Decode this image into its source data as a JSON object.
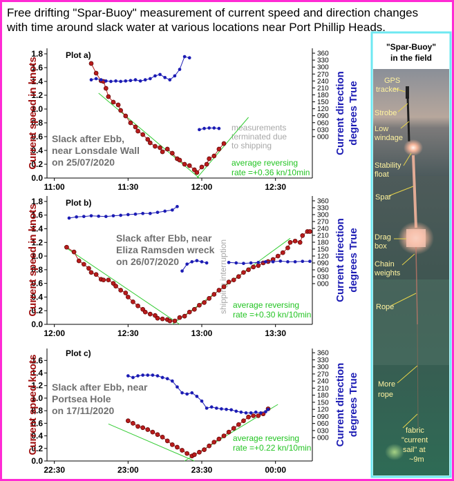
{
  "title": [
    "Free drifting \"Spar-Buoy\" measurement of current speed and direction changes",
    "with time around slack water at various locations near Port Phillip Heads."
  ],
  "chart_data": [
    {
      "type": "line",
      "plot_label": "Plot a)",
      "ylabel": "Current speed in knots",
      "y2label": [
        "Current direction",
        "degrees True"
      ],
      "note": [
        "Slack after Ebb,",
        "near Lonsdale Wall",
        "on 25/07/2020"
      ],
      "remark": [
        "measurements",
        "terminated due",
        "to shipping"
      ],
      "rate_note": [
        "average reversing",
        "rate =+0.36 kn/10min"
      ],
      "xlim": [
        "10:57",
        "12:45"
      ],
      "xticks": [
        "11:00",
        "11:30",
        "12:00",
        "12:30"
      ],
      "ylim": [
        0,
        1.88
      ],
      "yticks": [
        {
          "value": 0,
          "label": "0.0"
        },
        0.2,
        0.4,
        0.6,
        0.8,
        {
          "value": 1,
          "label": "1.0"
        },
        1.2,
        1.4,
        1.6,
        1.8
      ],
      "y2lim": [
        -179,
        381
      ],
      "y2ticks": [
        {
          "value": 0,
          "label": "000"
        },
        {
          "value": 30,
          "label": "030"
        },
        {
          "value": 60,
          "label": "060"
        },
        {
          "value": 90,
          "label": "090"
        },
        120,
        150,
        180,
        210,
        240,
        270,
        300,
        330,
        360
      ],
      "series": [
        {
          "color": "#b81c1c",
          "x": [
            "11:15",
            "11:17",
            "11:19",
            "11:20",
            "11:21",
            "11:22",
            "11:24",
            "11:26",
            "11:27",
            "11:29",
            "11:31",
            "11:33",
            "11:34",
            "11:36",
            "11:38",
            "11:39",
            "11:41",
            "11:43",
            "11:44",
            "11:46",
            "11:48",
            "11:50",
            "11:51",
            "11:53",
            "11:55",
            "11:57",
            "11:58",
            "12:00",
            "12:02",
            "12:03",
            "12:05",
            "12:07",
            "12:09"
          ],
          "values": [
            1.66,
            1.52,
            1.41,
            1.4,
            1.3,
            1.18,
            1.1,
            1.06,
            0.98,
            0.9,
            0.8,
            0.74,
            0.68,
            0.63,
            0.56,
            0.51,
            0.46,
            0.44,
            0.38,
            0.42,
            0.36,
            0.28,
            0.26,
            0.2,
            0.18,
            0.12,
            0.08,
            0.16,
            0.2,
            0.28,
            0.32,
            0.42,
            0.5
          ]
        },
        {
          "color": "#1c1cb4",
          "axis": "y2",
          "x": [
            "11:15",
            "11:17",
            "11:19",
            "11:21",
            "11:23",
            "11:25",
            "11:27",
            "11:29",
            "11:31",
            "11:33",
            "11:35",
            "11:37",
            "11:39",
            "11:41",
            "11:43",
            "11:45",
            "11:47",
            "11:49",
            "11:51",
            "11:53",
            "11:55",
            "11:57",
            "11:59",
            "12:01",
            "12:03",
            "12:05",
            "12:07"
          ],
          "values": [
            245,
            250,
            245,
            240,
            238,
            240,
            238,
            240,
            242,
            245,
            240,
            245,
            250,
            262,
            268,
            255,
            245,
            262,
            290,
            345,
            340,
            null,
            30,
            35,
            37,
            37,
            35
          ]
        }
      ],
      "trend_color": "#33cc33",
      "trend_lines": [
        {
          "x": [
            "11:18",
            "11:59"
          ],
          "values": [
            1.23,
            0
          ]
        },
        {
          "x": [
            "11:58",
            "12:19"
          ],
          "values": [
            0,
            0.88
          ]
        }
      ]
    },
    {
      "type": "line",
      "plot_label": "Plot b)",
      "ylabel": "Current speed in knots",
      "y2label": [
        "Current direction",
        "degrees True"
      ],
      "note": [
        "Slack after Ebb, near",
        "Eliza  Ramsden wreck",
        "on 26/07/2020"
      ],
      "rotated_note": "shipping interruption",
      "rate_note": [
        "average reversing",
        "rate =+0.30 kn/10min"
      ],
      "xlim": [
        "11:57",
        "13:45"
      ],
      "xticks": [
        "12:00",
        "12:30",
        "13:00",
        "13:30"
      ],
      "ylim": [
        0,
        1.88
      ],
      "yticks": [
        {
          "value": 0,
          "label": "0.0"
        },
        0.2,
        0.4,
        0.6,
        0.8,
        {
          "value": 1,
          "label": "1.0"
        },
        1.2,
        1.4,
        1.6,
        1.8
      ],
      "y2lim": [
        -177,
        381
      ],
      "y2ticks": [
        {
          "value": 0,
          "label": "000"
        },
        {
          "value": 30,
          "label": "030"
        },
        {
          "value": 60,
          "label": "060"
        },
        {
          "value": 90,
          "label": "090"
        },
        120,
        150,
        180,
        210,
        240,
        270,
        300,
        330,
        360
      ],
      "series": [
        {
          "color": "#b81c1c",
          "x": [
            "12:05",
            "12:08",
            "12:10",
            "12:12",
            "12:14",
            "12:15",
            "12:17",
            "12:19",
            "12:20",
            "12:22",
            "12:24",
            "12:25",
            "12:27",
            "12:29",
            "12:30",
            "12:32",
            "12:34",
            "12:36",
            "12:37",
            "12:39",
            "12:41",
            "12:42",
            "12:44",
            "12:46",
            "12:47",
            "12:49",
            "12:51",
            "12:53",
            "12:55",
            "12:57",
            "12:59",
            "13:01",
            "13:03",
            "13:05",
            "13:07",
            "13:09",
            "13:11",
            "13:13",
            "13:15",
            "13:17",
            "13:19",
            "13:21",
            "13:23",
            "13:25",
            "13:27",
            "13:29",
            "13:31",
            "13:33",
            "13:35",
            "13:36",
            "13:38",
            "13:40",
            "13:41",
            "13:43",
            "13:44"
          ],
          "values": [
            1.13,
            1.06,
            0.93,
            0.88,
            0.82,
            0.76,
            0.73,
            0.66,
            0.65,
            0.65,
            0.6,
            0.56,
            0.5,
            0.46,
            0.4,
            0.33,
            0.27,
            0.22,
            0.18,
            0.15,
            0.13,
            0.09,
            0.08,
            0.07,
            0.05,
            0.05,
            0.1,
            0.12,
            0.18,
            0.22,
            0.28,
            0.32,
            0.38,
            0.44,
            0.5,
            0.55,
            0.62,
            0.65,
            0.7,
            0.76,
            0.8,
            0.84,
            0.86,
            0.9,
            0.92,
            0.95,
            1.0,
            1.05,
            1.12,
            1.2,
            1.22,
            1.2,
            1.3,
            1.36,
            1.36
          ]
        },
        {
          "color": "#1c1cb4",
          "axis": "y2",
          "x": [
            "12:06",
            "12:09",
            "12:12",
            "12:15",
            "12:18",
            "12:21",
            "12:24",
            "12:27",
            "12:30",
            "12:33",
            "12:36",
            "12:39",
            "12:42",
            "12:45",
            "12:48",
            "12:50",
            "12:51",
            "12:52",
            "12:54",
            "12:56",
            "12:58",
            "13:00",
            "13:02",
            "13:06",
            "13:11",
            "13:14",
            "13:17",
            "13:20",
            "13:23",
            "13:26",
            "13:29",
            "13:32",
            "13:35",
            "13:38",
            "13:41",
            "13:44"
          ],
          "values": [
            285,
            290,
            292,
            295,
            293,
            292,
            295,
            297,
            300,
            302,
            305,
            305,
            310,
            315,
            320,
            335,
            null,
            55,
            85,
            95,
            100,
            95,
            90,
            null,
            92,
            90,
            88,
            90,
            92,
            95,
            95,
            98,
            95,
            95,
            97,
            97
          ]
        }
      ],
      "trend_color": "#33cc33",
      "trend_lines": [
        {
          "x": [
            "12:04",
            "12:51"
          ],
          "values": [
            1.14,
            0
          ]
        },
        {
          "x": [
            "12:48",
            "13:36"
          ],
          "values": [
            0,
            1.26
          ]
        }
      ]
    },
    {
      "type": "line",
      "plot_label": "Plot c)",
      "ylabel": "Current speed knots",
      "y2label": [
        "Current direction",
        "degrees True"
      ],
      "note": [
        "Slack after Ebb, near",
        "Portsea Hole",
        "on 17/11/2020"
      ],
      "rate_note": [
        "average reversing",
        "rate =+0.22 kn/10min"
      ],
      "xlim": [
        "22:27",
        "00:15"
      ],
      "xticks": [
        "22:30",
        "23:00",
        "23:30",
        "00:00"
      ],
      "ylim": [
        0,
        1.79
      ],
      "yticks": [
        {
          "value": 0,
          "label": "0.0"
        },
        0.2,
        0.4,
        0.6,
        0.8,
        {
          "value": 1,
          "label": "1.0"
        },
        1.2,
        1.4,
        1.6
      ],
      "y2lim": [
        -99,
        378
      ],
      "y2ticks": [
        {
          "value": 0,
          "label": "000"
        },
        {
          "value": 30,
          "label": "030"
        },
        {
          "value": 60,
          "label": "060"
        },
        {
          "value": 90,
          "label": "090"
        },
        120,
        150,
        180,
        210,
        240,
        270,
        300,
        330,
        360
      ],
      "series": [
        {
          "color": "#b81c1c",
          "x": [
            "23:00",
            "23:02",
            "23:04",
            "23:06",
            "23:08",
            "23:10",
            "23:12",
            "23:14",
            "23:16",
            "23:18",
            "23:20",
            "23:22",
            "23:24",
            "23:26",
            "23:27",
            "23:29",
            "23:31",
            "23:33",
            "23:35",
            "23:37",
            "23:39",
            "23:41",
            "23:43",
            "23:45",
            "23:47",
            "23:49",
            "23:51",
            "23:53",
            "23:55",
            "23:57"
          ],
          "values": [
            0.64,
            0.6,
            0.55,
            0.53,
            0.5,
            0.46,
            0.42,
            0.38,
            0.32,
            0.26,
            0.22,
            0.17,
            0.12,
            0.08,
            0.1,
            0.14,
            0.18,
            0.24,
            0.3,
            0.35,
            0.4,
            0.46,
            0.52,
            0.58,
            0.64,
            0.7,
            0.72,
            0.72,
            0.75,
            0.83
          ]
        },
        {
          "color": "#1c1cb4",
          "axis": "y2",
          "x": [
            "23:00",
            "23:02",
            "23:04",
            "23:06",
            "23:08",
            "23:10",
            "23:12",
            "23:14",
            "23:16",
            "23:18",
            "23:20",
            "23:22",
            "23:24",
            "23:26",
            "23:28",
            "23:30",
            "23:32",
            "23:34",
            "23:36",
            "23:38",
            "23:40",
            "23:42",
            "23:44",
            "23:46",
            "23:48",
            "23:50",
            "23:52",
            "23:54",
            "23:56",
            "23:57"
          ],
          "values": [
            262,
            255,
            262,
            265,
            265,
            265,
            262,
            255,
            250,
            240,
            215,
            190,
            185,
            190,
            175,
            155,
            125,
            130,
            125,
            122,
            120,
            118,
            112,
            108,
            105,
            105,
            108,
            105,
            110,
            120
          ]
        }
      ],
      "trend_color": "#33cc33",
      "trend_lines": [
        {
          "x": [
            "22:52",
            "23:27"
          ],
          "values": [
            0.59,
            0
          ]
        },
        {
          "x": [
            "23:23",
            "00:01"
          ],
          "values": [
            0,
            0.9
          ]
        }
      ]
    }
  ],
  "photo_panel": {
    "title": [
      "\"Spar-Buoy\"",
      "in the field"
    ],
    "labels": [
      {
        "lines": [
          "GPS",
          "tracker"
        ]
      },
      {
        "lines": [
          "Strobe"
        ]
      },
      {
        "lines": [
          "Low",
          "windage"
        ]
      },
      {
        "lines": [
          "Stability",
          "float"
        ]
      },
      {
        "lines": [
          "Spar"
        ]
      },
      {
        "lines": [
          "Drag",
          "box"
        ]
      },
      {
        "lines": [
          "Chain",
          "weights"
        ]
      },
      {
        "lines": [
          "Rope"
        ]
      },
      {
        "lines": [
          "More",
          "rope"
        ]
      },
      {
        "lines": [
          "fabric",
          "\"current",
          "sail\" at",
          "~9m"
        ]
      }
    ]
  }
}
